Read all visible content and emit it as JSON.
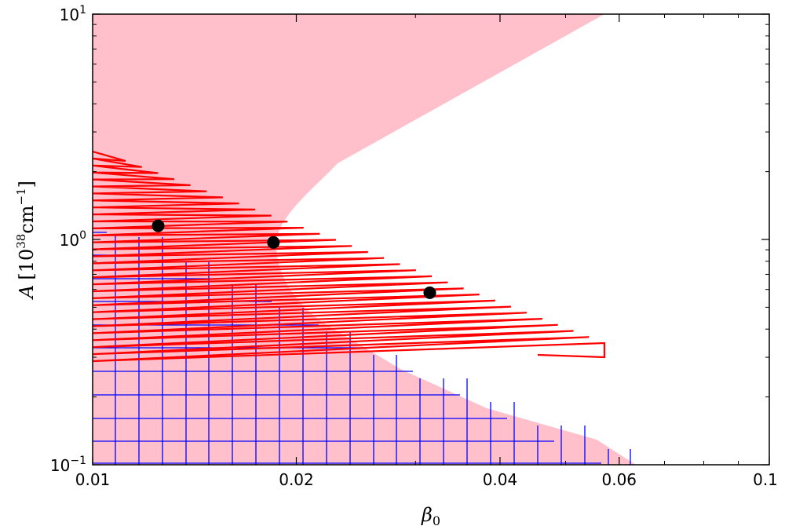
{
  "chart_data": {
    "type": "scatter",
    "xscale": "log",
    "yscale": "log",
    "xlim": [
      0.01,
      0.1
    ],
    "ylim": [
      0.1,
      10
    ],
    "xlabel": "β₀",
    "ylabel": "A [10³⁸cm⁻¹]",
    "grid": false,
    "x_ticks": [
      "0.01",
      "0.02",
      "0.04",
      "0.06",
      "0.1"
    ],
    "x_tick_values": [
      0.01,
      0.02,
      0.04,
      0.06,
      0.1
    ],
    "y_ticks": [
      {
        "value": 0.1,
        "base": "10",
        "exp": "−1"
      },
      {
        "value": 1,
        "base": "10",
        "exp": "0"
      },
      {
        "value": 10,
        "base": "10",
        "exp": "1"
      }
    ],
    "points": [
      {
        "x": 0.0125,
        "y": 1.15
      },
      {
        "x": 0.0185,
        "y": 0.97
      },
      {
        "x": 0.0315,
        "y": 0.58
      }
    ],
    "regions": {
      "pink_color": "#ffc0cb",
      "hatch_color": "#0000ff",
      "band_color": "#ff0000",
      "point_color": "#000000"
    }
  }
}
